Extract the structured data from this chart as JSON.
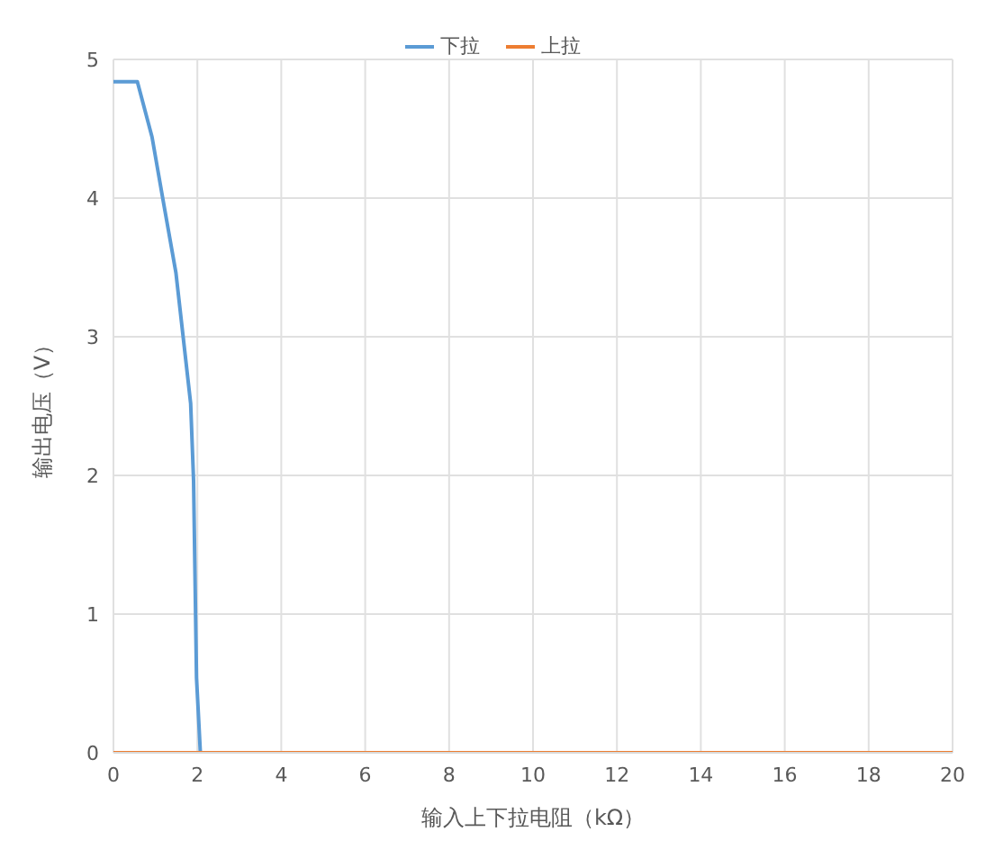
{
  "chart_data": {
    "type": "line",
    "xlabel": "输入上下拉电阻（kΩ）",
    "ylabel": "输出电压（V）",
    "series": [
      {
        "name": "下拉",
        "color": "#5b9bd5",
        "x": [
          0,
          0.57,
          0.92,
          1.18,
          1.49,
          1.84,
          1.91,
          1.98,
          2.07
        ],
        "values": [
          4.84,
          4.84,
          4.44,
          3.99,
          3.46,
          2.52,
          1.96,
          0.54,
          0.01
        ]
      },
      {
        "name": "上拉",
        "color": "#ed7d31",
        "x": [
          0,
          20
        ],
        "values": [
          0,
          0
        ]
      }
    ],
    "xlim": [
      0,
      20
    ],
    "xticks": [
      0,
      2,
      4,
      6,
      8,
      10,
      12,
      14,
      16,
      18,
      20
    ],
    "ylim": [
      0,
      5
    ],
    "yticks": [
      0,
      1,
      2,
      3,
      4,
      5
    ],
    "grid": true,
    "legend": "top",
    "marker": "none",
    "line_style": "solid"
  }
}
